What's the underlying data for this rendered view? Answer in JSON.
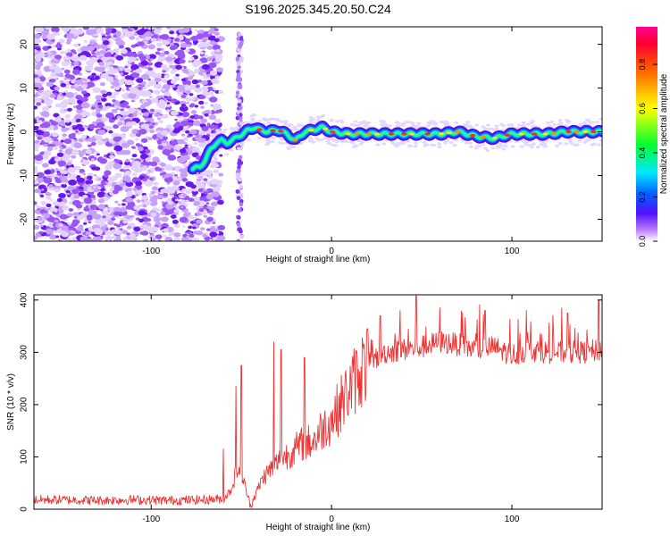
{
  "title": "S196.2025.345.20.50.C24",
  "chart_data": [
    {
      "type": "heatmap",
      "xlabel": "Height of straight line (km)",
      "ylabel": "Frequency (Hz)",
      "xlim": [
        -165,
        150
      ],
      "ylim": [
        -25,
        24
      ],
      "xticks": [
        -100,
        0,
        100
      ],
      "yticks": [
        -20,
        -10,
        0,
        10,
        20
      ],
      "noise_region": {
        "x_from": -165,
        "x_to": -65
      },
      "noise_band": {
        "x": -51,
        "y_from": -25,
        "y_to": 23
      },
      "ridge": {
        "x": [
          -77,
          -73,
          -70,
          -67,
          -64,
          -61,
          -58,
          -55,
          -52,
          -49,
          -46,
          -43,
          -40,
          -35,
          -30,
          -25,
          -20,
          -15,
          -10,
          -5,
          0,
          10,
          20,
          30,
          40,
          50,
          60,
          70,
          80,
          90,
          100,
          110,
          120,
          130,
          140,
          150
        ],
        "y": [
          -8.5,
          -8,
          -6.5,
          -4,
          -2.5,
          -2,
          -2.5,
          -2,
          -1,
          -0.5,
          0.5,
          1,
          0.5,
          0,
          0.5,
          -0.5,
          -2,
          0,
          0.5,
          1,
          0,
          -0.5,
          -0.5,
          -0.5,
          -0.5,
          -0.5,
          -0.5,
          0,
          -1,
          -1.5,
          -0.5,
          -0.5,
          -0.5,
          0,
          0,
          0
        ]
      },
      "colorbar": {
        "label": "Normalized spectral amplitude",
        "range": [
          0,
          0.97
        ],
        "ticks": [
          0.0,
          0.2,
          0.4,
          0.6,
          0.8
        ]
      }
    },
    {
      "type": "line",
      "xlabel": "Height of straight line (km)",
      "ylabel": "SNR (10 * v/v)",
      "xlim": [
        -165,
        150
      ],
      "ylim": [
        0,
        410
      ],
      "xticks": [
        -100,
        0,
        100
      ],
      "yticks": [
        0,
        100,
        200,
        300,
        400
      ],
      "color": "#ee3333",
      "series": [
        {
          "name": "SNR",
          "x": [
            -165,
            -150,
            -130,
            -110,
            -90,
            -70,
            -60,
            -56,
            -52,
            -48,
            -45,
            -42,
            -38,
            -33,
            -28,
            -22,
            -16,
            -10,
            -5,
            0,
            5,
            10,
            15,
            20,
            25,
            30,
            40,
            50,
            60,
            70,
            80,
            90,
            100,
            110,
            120,
            130,
            140,
            150
          ],
          "y": [
            18,
            18,
            17,
            18,
            17,
            18,
            20,
            35,
            80,
            45,
            5,
            30,
            60,
            80,
            95,
            110,
            125,
            130,
            155,
            170,
            200,
            230,
            260,
            280,
            290,
            300,
            305,
            310,
            320,
            315,
            305,
            310,
            295,
            305,
            300,
            300,
            300,
            305
          ]
        }
      ],
      "spikes": [
        {
          "x": -60,
          "y": 115
        },
        {
          "x": -53,
          "y": 235
        },
        {
          "x": -50,
          "y": 275
        },
        {
          "x": -32,
          "y": 320
        },
        {
          "x": -28,
          "y": 305
        },
        {
          "x": -15,
          "y": 290
        },
        {
          "x": 20,
          "y": 345
        },
        {
          "x": 27,
          "y": 370
        },
        {
          "x": 38,
          "y": 380
        },
        {
          "x": 47,
          "y": 408
        },
        {
          "x": 60,
          "y": 385
        },
        {
          "x": 85,
          "y": 380
        },
        {
          "x": 108,
          "y": 380
        },
        {
          "x": 131,
          "y": 375
        },
        {
          "x": 148,
          "y": 400
        }
      ]
    }
  ]
}
